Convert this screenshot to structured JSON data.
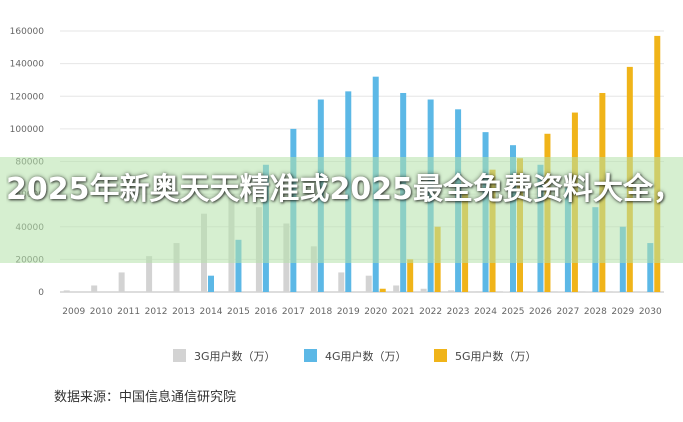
{
  "chart_data": {
    "type": "bar",
    "categories": [
      "2009",
      "2010",
      "2011",
      "2012",
      "2013",
      "2014",
      "2015",
      "2016",
      "2017",
      "2018",
      "2019",
      "2020",
      "2021",
      "2022",
      "2023",
      "2024",
      "2025",
      "2026",
      "2027",
      "2028",
      "2029",
      "2030"
    ],
    "series": [
      {
        "name": "3G用户数（万）",
        "color": "#d3d3d3",
        "values": [
          1000,
          4000,
          12000,
          22000,
          30000,
          48000,
          60000,
          52000,
          42000,
          28000,
          12000,
          10000,
          4000,
          2000,
          1000,
          500,
          300,
          200,
          100,
          100,
          100,
          100
        ]
      },
      {
        "name": "4G用户数（万）",
        "color": "#5cb8e6",
        "values": [
          0,
          0,
          0,
          0,
          0,
          10000,
          32000,
          78000,
          100000,
          118000,
          123000,
          132000,
          122000,
          118000,
          112000,
          98000,
          90000,
          78000,
          64000,
          52000,
          40000,
          30000
        ]
      },
      {
        "name": "5G用户数（万）",
        "color": "#f0b419",
        "values": [
          0,
          0,
          0,
          0,
          0,
          0,
          0,
          0,
          0,
          0,
          0,
          2000,
          20000,
          40000,
          60000,
          75000,
          82000,
          97000,
          110000,
          122000,
          138000,
          157000
        ]
      }
    ],
    "ylim": [
      0,
      160000
    ],
    "yticks": [
      "0",
      "20000",
      "40000",
      "60000",
      "80000",
      "100000",
      "120000",
      "140000",
      "160000"
    ],
    "grid": true,
    "legend_position": "bottom"
  },
  "source_text": "数据来源：中国信息通信研究院",
  "overlay_text": "2025年新奥天天精准或2025最全免费资料大全，详尽解答、专家解读解释与"
}
